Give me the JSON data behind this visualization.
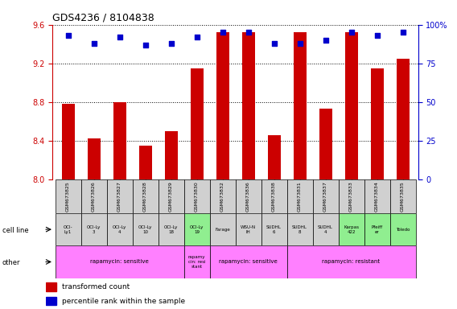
{
  "title": "GDS4236 / 8104838",
  "samples": [
    "GSM673825",
    "GSM673826",
    "GSM673827",
    "GSM673828",
    "GSM673829",
    "GSM673830",
    "GSM673832",
    "GSM673836",
    "GSM673838",
    "GSM673831",
    "GSM673837",
    "GSM673833",
    "GSM673834",
    "GSM673835"
  ],
  "transformed_count": [
    8.78,
    8.42,
    8.8,
    8.35,
    8.5,
    9.15,
    9.52,
    9.52,
    8.46,
    9.52,
    8.73,
    9.52,
    9.15,
    9.25
  ],
  "percentile_rank": [
    93,
    88,
    92,
    87,
    88,
    92,
    95,
    95,
    88,
    88,
    90,
    95,
    93,
    95
  ],
  "ylim_left": [
    8.0,
    9.6
  ],
  "ylim_right": [
    0,
    100
  ],
  "yticks_left": [
    8.0,
    8.4,
    8.8,
    9.2,
    9.6
  ],
  "yticks_right": [
    0,
    25,
    50,
    75,
    100
  ],
  "cell_line_labels": [
    "OCI-\nLy1",
    "OCI-Ly\n3",
    "OCI-Ly\n4",
    "OCI-Ly\n10",
    "OCI-Ly\n18",
    "OCI-Ly\n19",
    "Farage",
    "WSU-N\nIH",
    "SUDHL\n6",
    "SUDHL\n8",
    "SUDHL\n4",
    "Karpas\n422",
    "Pfeiff\ner",
    "Toledo"
  ],
  "cell_line_colors": [
    "#d0d0d0",
    "#d0d0d0",
    "#d0d0d0",
    "#d0d0d0",
    "#d0d0d0",
    "#90ee90",
    "#d0d0d0",
    "#d0d0d0",
    "#d0d0d0",
    "#d0d0d0",
    "#d0d0d0",
    "#90ee90",
    "#90ee90",
    "#90ee90"
  ],
  "other_groups": [
    {
      "label": "rapamycin: sensitive",
      "start": 0,
      "end": 5,
      "color": "#ff80ff"
    },
    {
      "label": "rapamy\ncin: resi\nstant",
      "start": 5,
      "end": 6,
      "color": "#ff80ff"
    },
    {
      "label": "rapamycin: sensitive",
      "start": 6,
      "end": 9,
      "color": "#ff80ff"
    },
    {
      "label": "rapamycin: resistant",
      "start": 9,
      "end": 14,
      "color": "#ff80ff"
    }
  ],
  "bar_color": "#cc0000",
  "dot_color": "#0000cc",
  "bar_bottom": 8.0,
  "grid_color": "#000000",
  "bg_color": "#ffffff",
  "left_label_color": "#cc0000",
  "right_label_color": "#0000cc",
  "gsm_bg_color": "#d0d0d0"
}
